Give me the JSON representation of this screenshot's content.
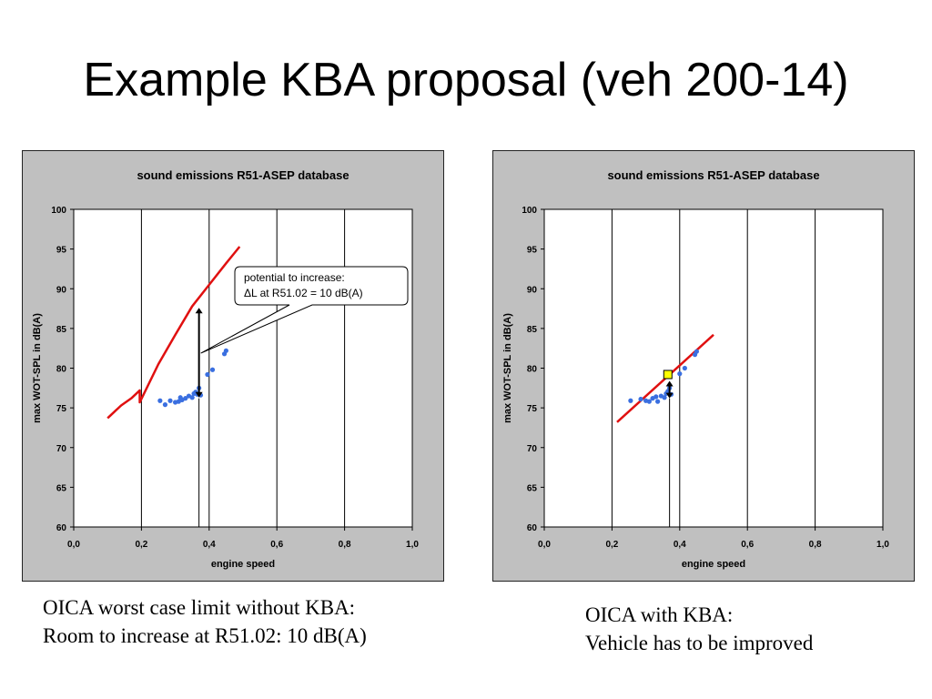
{
  "slide": {
    "title": "Example KBA proposal (veh 200-14)"
  },
  "colors": {
    "plot_area": "#ffffff",
    "chart_background": "#c0c0c0",
    "data_points": "#3a6fe0",
    "limit_line": "#e01010",
    "marker_fill": "#ffff00",
    "arrow": "#000000"
  },
  "captions": {
    "left": {
      "line1": "OICA worst case limit without KBA:",
      "line2": "Room to increase at R51.02: 10 dB(A)"
    },
    "right": {
      "line1": "OICA with KBA:",
      "line2": "Vehicle has to be improved"
    }
  },
  "chart_data": [
    {
      "type": "scatter",
      "title": "sound emissions R51-ASEP database",
      "xlabel": "engine speed",
      "ylabel": "max WOT-SPL in dB(A)",
      "xlim": [
        0,
        1
      ],
      "ylim": [
        60,
        100
      ],
      "x_ticks": [
        "0,0",
        "0,2",
        "0,4",
        "0,6",
        "0,8",
        "1,0"
      ],
      "y_ticks": [
        "60",
        "65",
        "70",
        "75",
        "80",
        "85",
        "90",
        "95",
        "100"
      ],
      "grid": "vertical at 0.2 steps",
      "legend": "none",
      "series": [
        {
          "x": [
            0.255,
            0.27,
            0.285,
            0.3,
            0.31,
            0.315,
            0.32,
            0.33,
            0.34,
            0.35,
            0.355,
            0.36,
            0.365,
            0.37,
            0.375,
            0.395,
            0.41,
            0.445,
            0.45
          ],
          "y": [
            75.9,
            75.4,
            75.9,
            75.7,
            75.8,
            76.3,
            76.0,
            76.2,
            76.5,
            76.3,
            76.8,
            77.0,
            76.7,
            77.5,
            76.6,
            79.2,
            79.8,
            81.8,
            82.2
          ]
        }
      ],
      "limit_line": {
        "x": [
          0.1,
          0.14,
          0.17,
          0.195,
          0.195,
          0.25,
          0.3,
          0.35,
          0.4,
          0.45,
          0.49
        ],
        "y": [
          73.7,
          75.3,
          76.2,
          77.2,
          75.7,
          80.5,
          84.2,
          87.8,
          90.5,
          93.2,
          95.3
        ]
      },
      "vertical_marker": {
        "x": 0.37,
        "y_from": 60,
        "y_to": 76.2
      },
      "arrow": {
        "x": 0.37,
        "y_from": 76.3,
        "y_to": 87.6
      },
      "callout": {
        "line1": "potential to increase:",
        "line2": "ΔL at R51.02 = 10 dB(A)",
        "pointer_to": {
          "x": 0.37,
          "y": 82.0
        }
      }
    },
    {
      "type": "scatter",
      "title": "sound emissions R51-ASEP database",
      "xlabel": "engine speed",
      "ylabel": "max WOT-SPL in dB(A)",
      "xlim": [
        0,
        1
      ],
      "ylim": [
        60,
        100
      ],
      "x_ticks": [
        "0,0",
        "0,2",
        "0,4",
        "0,6",
        "0,8",
        "1,0"
      ],
      "y_ticks": [
        "60",
        "65",
        "70",
        "75",
        "80",
        "85",
        "90",
        "95",
        "100"
      ],
      "grid": "vertical at 0.2 steps",
      "legend": "none",
      "series": [
        {
          "x": [
            0.255,
            0.285,
            0.3,
            0.31,
            0.32,
            0.33,
            0.335,
            0.345,
            0.355,
            0.36,
            0.365,
            0.37,
            0.375,
            0.4,
            0.415,
            0.445,
            0.45
          ],
          "y": [
            75.9,
            76.1,
            75.9,
            75.8,
            76.2,
            76.4,
            75.8,
            76.5,
            76.3,
            76.8,
            77.1,
            77.5,
            76.7,
            79.3,
            80.0,
            81.7,
            82.1
          ]
        }
      ],
      "limit_line": {
        "x": [
          0.215,
          0.5
        ],
        "y": [
          73.2,
          84.2
        ]
      },
      "highlight_point": {
        "x": 0.365,
        "y": 79.2
      },
      "vertical_marker": {
        "x": 0.37,
        "y_from": 60,
        "y_to": 76.2
      },
      "arrow": {
        "x": 0.37,
        "y_from": 76.2,
        "y_to": 78.4
      }
    }
  ]
}
